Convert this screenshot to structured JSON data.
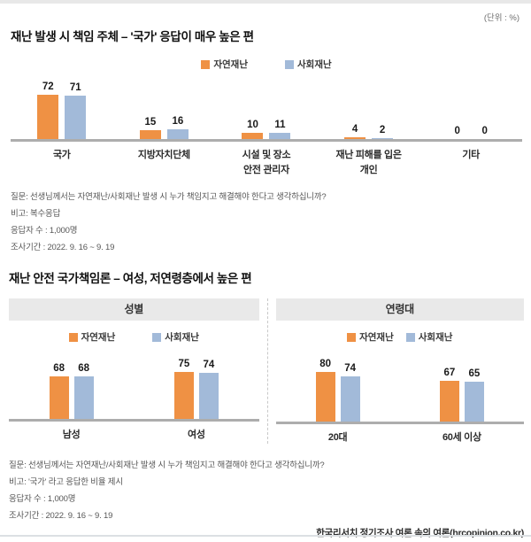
{
  "page": {
    "unit_label": "(단위 : %)",
    "source": "한국리서치 정기조사 여론 속의 여론(hrcopinion.co.kr)"
  },
  "colors": {
    "natural_disaster": "#EF9144",
    "social_disaster": "#A2BAD9",
    "axis": "#ADADAD",
    "panel_header_bg": "#E9E9E9"
  },
  "section1": {
    "title": "재난 발생 시 책임 주체 – '국가' 응답이 매우 높은 편",
    "notes": [
      "질문: 선생님께서는 자연재난/사회재난 발생 시 누가 책임지고 해결해야 한다고 생각하십니까?",
      "비고: 복수응답",
      "응답자 수 : 1,000명",
      "조사기간 : 2022. 9. 16 ~ 9. 19"
    ]
  },
  "section2": {
    "title": "재난 안전 국가책임론  – 여성, 저연령층에서 높은 편",
    "panels": [
      {
        "header": "성별"
      },
      {
        "header": "연령대"
      }
    ],
    "notes": [
      "질문: 선생님께서는 자연재난/사회재난 발생 시 누가 책임지고 해결해야 한다고 생각하십니까?",
      "비고: '국가' 라고 응답한 비율 제시",
      "응답자 수 : 1,000명",
      "조사기간 : 2022. 9. 16 ~ 9. 19"
    ]
  },
  "chart_data": [
    {
      "id": "responsibility",
      "type": "bar",
      "title": "재난 발생 시 책임 주체",
      "unit": "%",
      "ylim": [
        0,
        100
      ],
      "grid": false,
      "legend_position": "top-center",
      "categories": [
        "국가",
        "지방자치단체",
        "시설 및 장소\n안전 관리자",
        "재난 피해를 입은\n개인",
        "기타"
      ],
      "series": [
        {
          "name": "자연재난",
          "color": "#EF9144",
          "values": [
            72,
            15,
            10,
            4,
            0
          ]
        },
        {
          "name": "사회재난",
          "color": "#A2BAD9",
          "values": [
            71,
            16,
            11,
            2,
            0
          ]
        }
      ]
    },
    {
      "id": "gender",
      "type": "bar",
      "title": "성별",
      "unit": "%",
      "ylim": [
        0,
        100
      ],
      "grid": false,
      "legend_position": "top-center",
      "categories": [
        "남성",
        "여성"
      ],
      "series": [
        {
          "name": "자연재난",
          "color": "#EF9144",
          "values": [
            68,
            75
          ]
        },
        {
          "name": "사회재난",
          "color": "#A2BAD9",
          "values": [
            68,
            74
          ]
        }
      ]
    },
    {
      "id": "age",
      "type": "bar",
      "title": "연령대",
      "unit": "%",
      "ylim": [
        0,
        100
      ],
      "grid": false,
      "legend_position": "top-center",
      "categories": [
        "20대",
        "60세 이상"
      ],
      "series": [
        {
          "name": "자연재난",
          "color": "#EF9144",
          "values": [
            80,
            67
          ]
        },
        {
          "name": "사회재난",
          "color": "#A2BAD9",
          "values": [
            74,
            65
          ]
        }
      ]
    }
  ]
}
